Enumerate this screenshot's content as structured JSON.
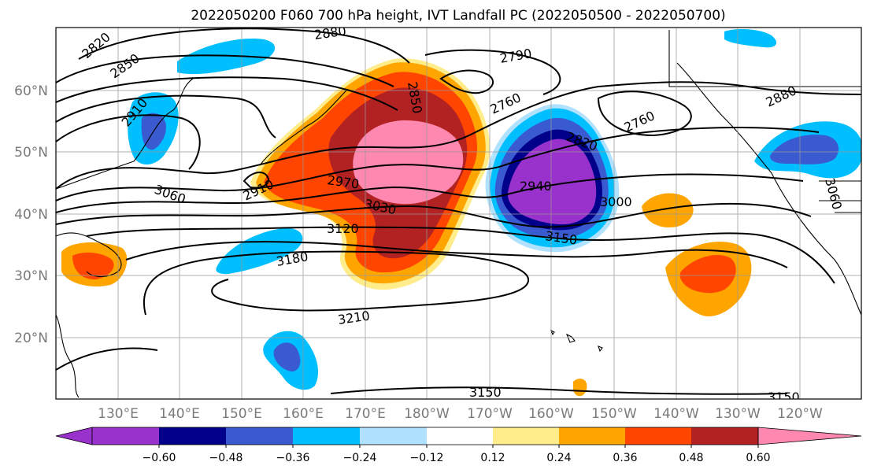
{
  "title": "2022050200 F060 700 hPa height, IVT Landfall PC (2022050500 - 2022050700)",
  "map": {
    "lat_ticks": [
      "60°N",
      "50°N",
      "40°N",
      "30°N",
      "20°N"
    ],
    "lon_ticks": [
      "130°E",
      "140°E",
      "150°E",
      "160°E",
      "170°E",
      "180°W",
      "170°W",
      "160°W",
      "150°W",
      "140°W",
      "130°W",
      "120°W"
    ],
    "contour_labels": [
      "2820",
      "2850",
      "2880",
      "2910",
      "3060",
      "2910",
      "2970",
      "3030",
      "3120",
      "3180",
      "3210",
      "2850",
      "2790",
      "2760",
      "2760",
      "2820",
      "2940",
      "3000",
      "3150",
      "2880",
      "3060",
      "3150",
      "3150"
    ],
    "grid": true
  },
  "colorbar": {
    "labels": [
      "−0.60",
      "−0.48",
      "−0.36",
      "−0.24",
      "−0.12",
      "0.12",
      "0.24",
      "0.36",
      "0.48",
      "0.60"
    ],
    "colors": [
      "#9932cc",
      "#00008b",
      "#3a5bd0",
      "#00bfff",
      "#b0e2ff",
      "#ffffff",
      "#ffec8b",
      "#ffa500",
      "#ff4500",
      "#b22222",
      "#ff88b0"
    ]
  }
}
